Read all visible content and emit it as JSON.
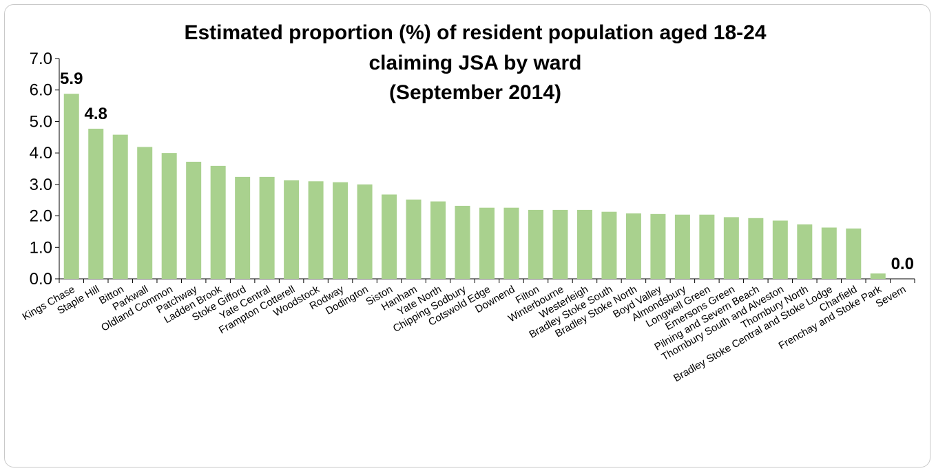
{
  "chart_data": {
    "type": "bar",
    "title": "Estimated proportion (%) of resident population aged 18-24",
    "title_line2": "claiming JSA by ward",
    "subtitle": "(September 2014)",
    "xlabel": "",
    "ylabel": "",
    "ylim": [
      0,
      7
    ],
    "yticks": [
      "0.0",
      "1.0",
      "2.0",
      "3.0",
      "4.0",
      "5.0",
      "6.0",
      "7.0"
    ],
    "grid": false,
    "legend": "none",
    "bar_color": "#a9d18e",
    "categories": [
      "Kings Chase",
      "Staple Hill",
      "Bitton",
      "Parkwall",
      "Oldland Common",
      "Patchway",
      "Ladden Brook",
      "Stoke Gifford",
      "Yate Central",
      "Frampton Cotterell",
      "Woodstock",
      "Rodway",
      "Dodington",
      "Siston",
      "Hanham",
      "Yate North",
      "Chipping Sodbury",
      "Cotswold Edge",
      "Downend",
      "Filton",
      "Winterbourne",
      "Westerleigh",
      "Bradley Stoke South",
      "Bradley Stoke North",
      "Boyd Valley",
      "Almondsbury",
      "Longwell Green",
      "Emersons Green",
      "Pilning and Severn Beach",
      "Thornbury South and Alveston",
      "Thornbury North",
      "Bradley Stoke Central and Stoke Lodge",
      "Charfield",
      "Frenchay and Stoke Park",
      "Severn"
    ],
    "values": [
      5.88,
      4.77,
      4.58,
      4.19,
      4.0,
      3.72,
      3.59,
      3.24,
      3.24,
      3.13,
      3.1,
      3.07,
      3.0,
      2.68,
      2.52,
      2.46,
      2.32,
      2.26,
      2.26,
      2.19,
      2.19,
      2.19,
      2.13,
      2.08,
      2.06,
      2.04,
      2.04,
      1.96,
      1.93,
      1.85,
      1.73,
      1.63,
      1.6,
      0.17,
      0.0
    ],
    "data_labels": [
      {
        "index": 0,
        "text": "5.9"
      },
      {
        "index": 1,
        "text": "4.8"
      },
      {
        "index": 34,
        "text": "0.0"
      }
    ]
  }
}
